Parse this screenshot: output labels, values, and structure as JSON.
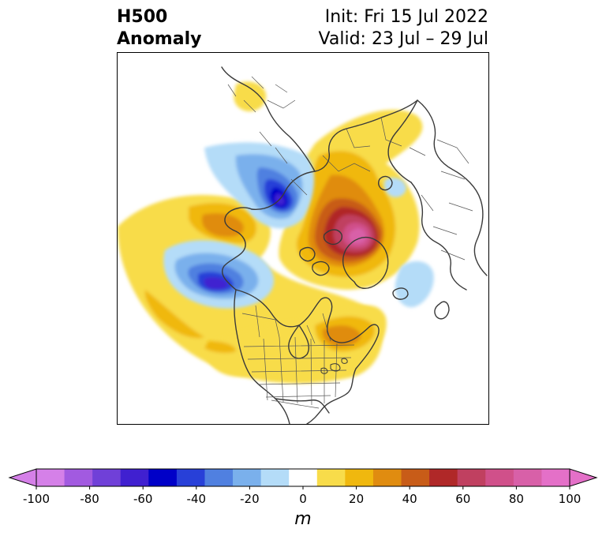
{
  "title": {
    "left_line1": "H500",
    "left_line2": "Anomaly",
    "right_line1": "Init: Fri 15 Jul 2022",
    "right_line2": "Valid: 23 Jul – 29 Jul"
  },
  "colorbar": {
    "unit": "m",
    "min": -100,
    "max": 100,
    "extend": "both",
    "tick_labels": [
      "-100",
      "-80",
      "-60",
      "-40",
      "-20",
      "0",
      "20",
      "40",
      "60",
      "80",
      "100"
    ],
    "levels": [
      -100,
      -90,
      -80,
      -70,
      -60,
      -50,
      -40,
      -30,
      -20,
      -10,
      10,
      20,
      30,
      40,
      50,
      60,
      70,
      80,
      90,
      100
    ],
    "colors": {
      "below_min": "#d580e8",
      "bins": [
        "#d580e8",
        "#a25ae0",
        "#7040d8",
        "#4020d0",
        "#0000c8",
        "#2840d8",
        "#5080e0",
        "#7ab0ec",
        "#b4dcf8",
        "#ffffff",
        "#f8dc4a",
        "#f0b80e",
        "#e08c10",
        "#c85c18",
        "#b02828",
        "#c04060",
        "#d0508a",
        "#d860a8",
        "#e470c8"
      ],
      "above_max": "#e470c8"
    }
  },
  "map": {
    "projection": "polar stereographic (North America / Arctic)",
    "features": [
      "coastlines",
      "country borders",
      "US states",
      "Canadian provinces"
    ]
  }
}
